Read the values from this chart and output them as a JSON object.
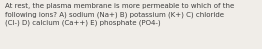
{
  "text": "At rest, the plasma membrane is more permeable to which of the\nfollowing ions? A) sodium (Na+) B) potassium (K+) C) chloride\n(Cl-) D) calcium (Ca++) E) phosphate (PO4-)",
  "font_size": 5.0,
  "text_color": "#404040",
  "background_color": "#f0ede8",
  "fig_width": 2.62,
  "fig_height": 0.49,
  "dpi": 100
}
